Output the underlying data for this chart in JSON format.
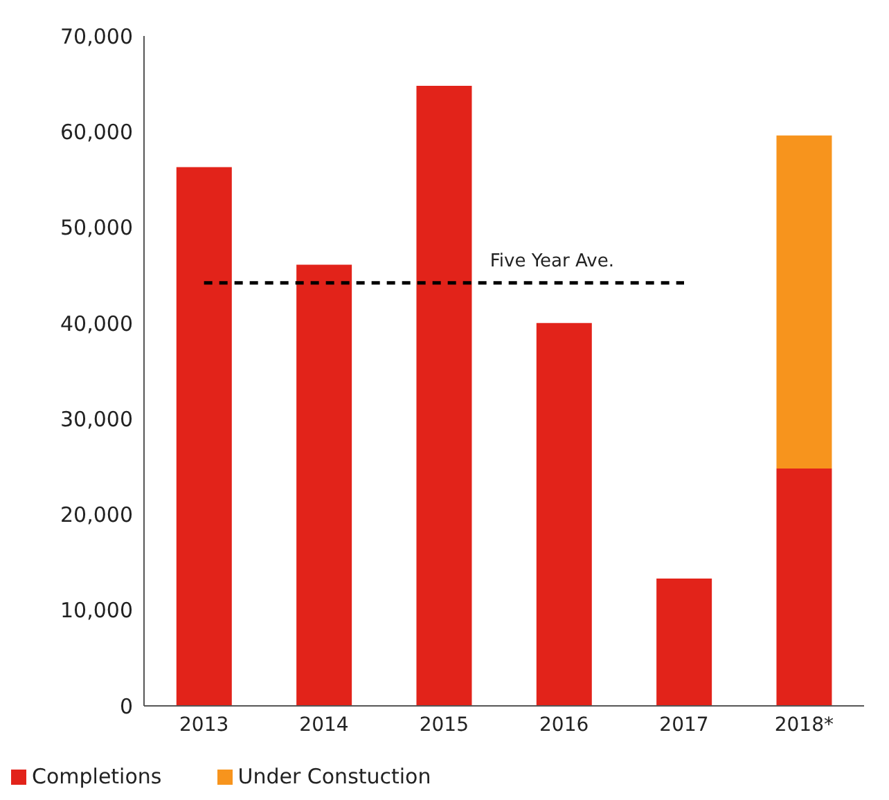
{
  "chart_data": {
    "type": "bar",
    "stacked": true,
    "categories": [
      "2013",
      "2014",
      "2015",
      "2016",
      "2017",
      "2018*"
    ],
    "series": [
      {
        "name": "Completions",
        "color": "#e2231a",
        "values": [
          56300,
          46100,
          64800,
          40000,
          13300,
          24800
        ]
      },
      {
        "name": "Under Constuction",
        "color": "#f7941d",
        "values": [
          null,
          null,
          null,
          null,
          null,
          34800
        ]
      }
    ],
    "ylim": [
      0,
      70000
    ],
    "yticks": [
      {
        "value": 0,
        "label": "0"
      },
      {
        "value": 10000,
        "label": "10,000"
      },
      {
        "value": 20000,
        "label": "20,000"
      },
      {
        "value": 30000,
        "label": "30,000"
      },
      {
        "value": 40000,
        "label": "40,000"
      },
      {
        "value": 50000,
        "label": "50,000"
      },
      {
        "value": 60000,
        "label": "60,000"
      },
      {
        "value": 70000,
        "label": "70,000"
      }
    ],
    "ref_lines": [
      {
        "axis": "y",
        "value": 44200,
        "label": "Five Year Ave.",
        "color": "#000000",
        "line_style": "dashed"
      }
    ],
    "grid": false,
    "legend": "bottom left"
  }
}
